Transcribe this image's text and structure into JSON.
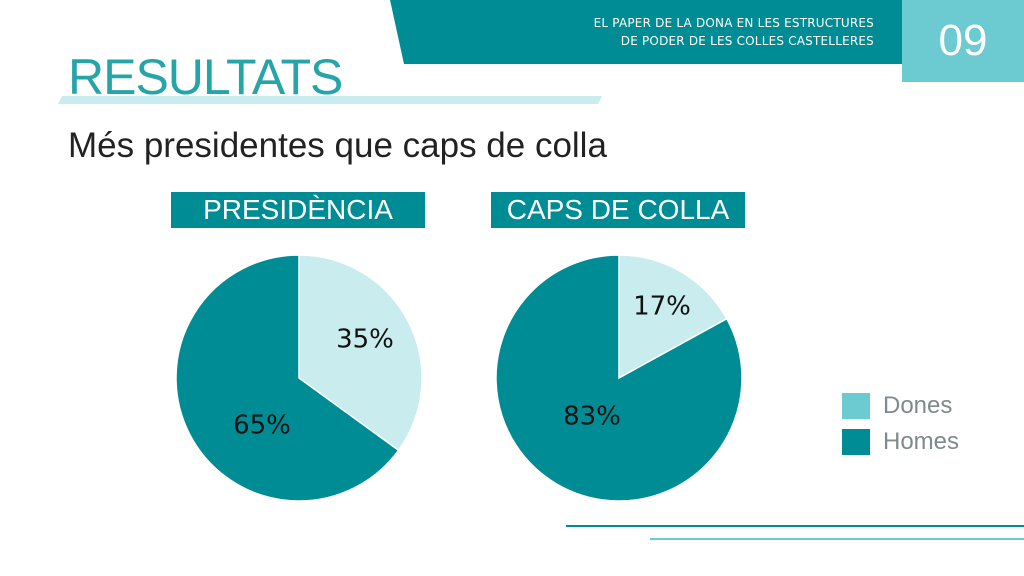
{
  "header": {
    "line1": "EL PAPER DE LA DONA EN LES ESTRUCTURES",
    "line2": "DE PODER DE LES COLLES CASTELLERES",
    "page_number": "09"
  },
  "title": "RESULTATS",
  "subtitle": "Més presidentes que caps de colla",
  "colors": {
    "dark_teal": "#008c95",
    "light_teal": "#c9ecee",
    "accent": "#6ccbd1",
    "title": "#26a5a9"
  },
  "legend": [
    {
      "label": "Dones",
      "color": "#6ccbd1"
    },
    {
      "label": "Homes",
      "color": "#008c95"
    }
  ],
  "chart_data": [
    {
      "type": "pie",
      "title": "PRESIDÈNCIA",
      "slices": [
        {
          "label": "Dones",
          "value": 35,
          "text": "35%",
          "color": "#c9ecee"
        },
        {
          "label": "Homes",
          "value": 65,
          "text": "65%",
          "color": "#008c95"
        }
      ]
    },
    {
      "type": "pie",
      "title": "CAPS DE COLLA",
      "slices": [
        {
          "label": "Dones",
          "value": 17,
          "text": "17%",
          "color": "#c9ecee"
        },
        {
          "label": "Homes",
          "value": 83,
          "text": "83%",
          "color": "#008c95"
        }
      ]
    }
  ]
}
